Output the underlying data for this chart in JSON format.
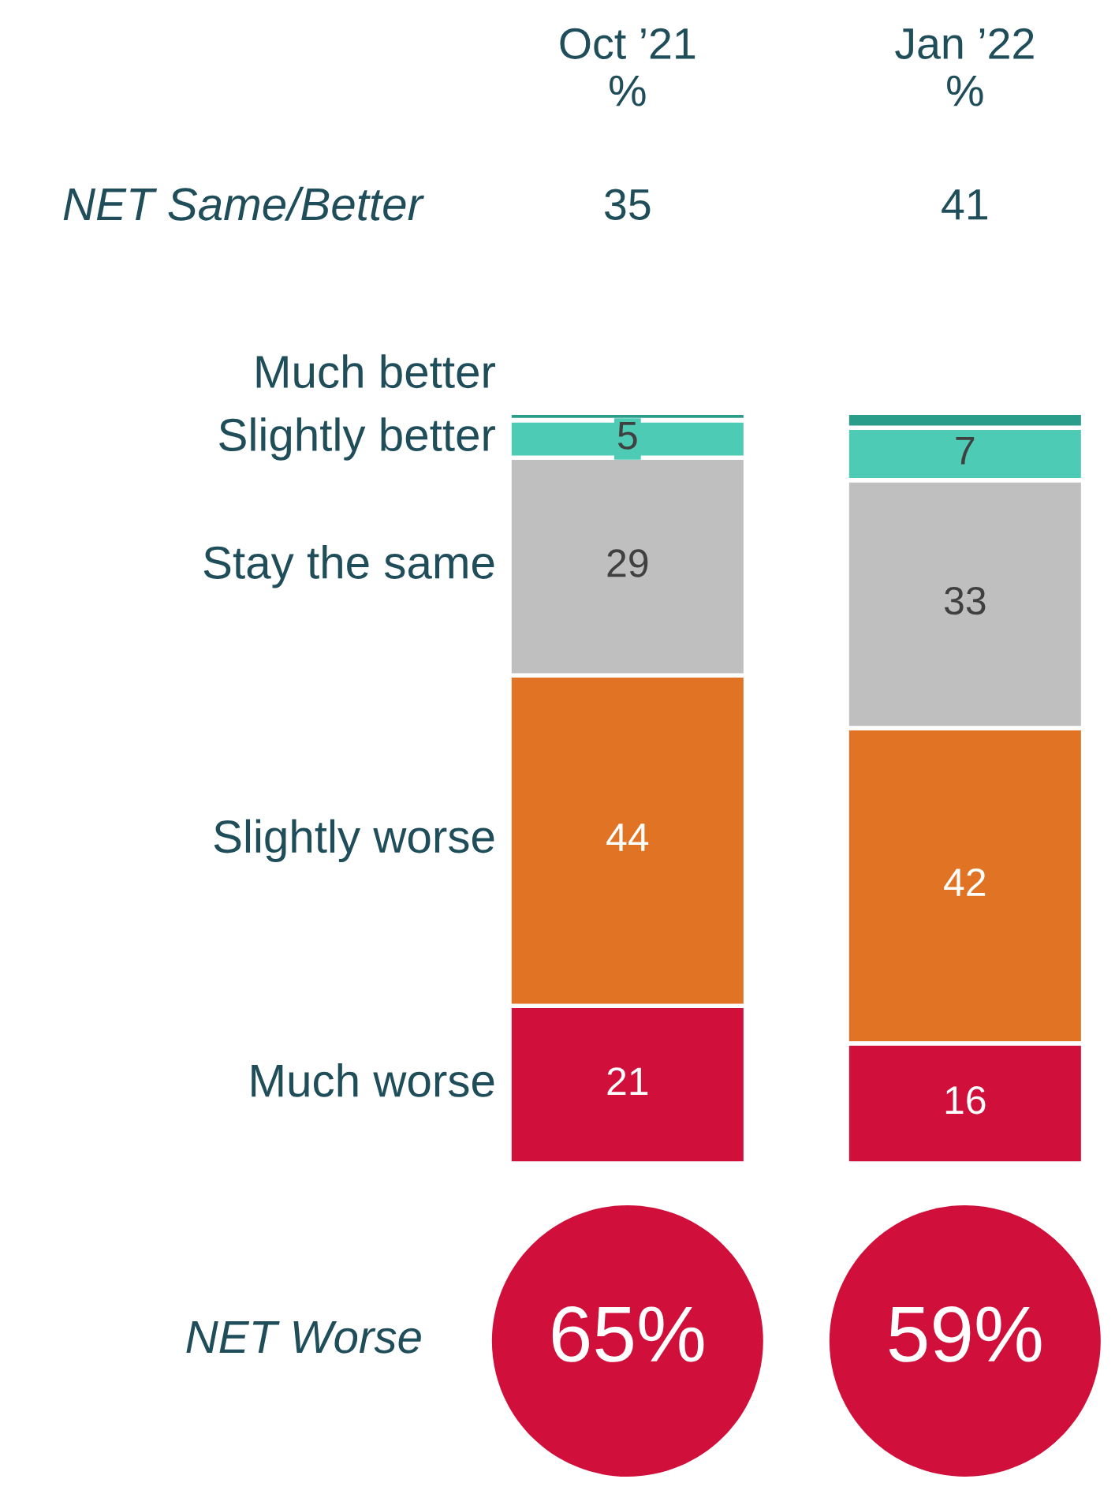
{
  "chart_data": {
    "type": "bar",
    "stacked": true,
    "categories": [
      "Oct ’21\n%",
      "Jan ’22\n%"
    ],
    "series": [
      {
        "name": "Much worse",
        "color": "#d0103a",
        "values": [
          21,
          16
        ],
        "value_labels": [
          "21",
          "16"
        ]
      },
      {
        "name": "Slightly worse",
        "color": "#e07424",
        "values": [
          44,
          42
        ],
        "value_labels": [
          "44",
          "42"
        ]
      },
      {
        "name": "Stay the same",
        "color": "#bfbfbf",
        "values": [
          29,
          33
        ],
        "value_labels": [
          "29",
          "33"
        ]
      },
      {
        "name": "Slightly better",
        "color": "#4ecbb4",
        "values": [
          5,
          7
        ],
        "value_labels": [
          "5",
          "7"
        ]
      },
      {
        "name": "Much better",
        "color": "#2a9d8a",
        "values": [
          1,
          2
        ],
        "value_labels": [
          null,
          null
        ]
      }
    ],
    "annotations": [
      "NET Same/Better",
      "35",
      "41",
      "NET Worse",
      "65%",
      "59%"
    ]
  }
}
